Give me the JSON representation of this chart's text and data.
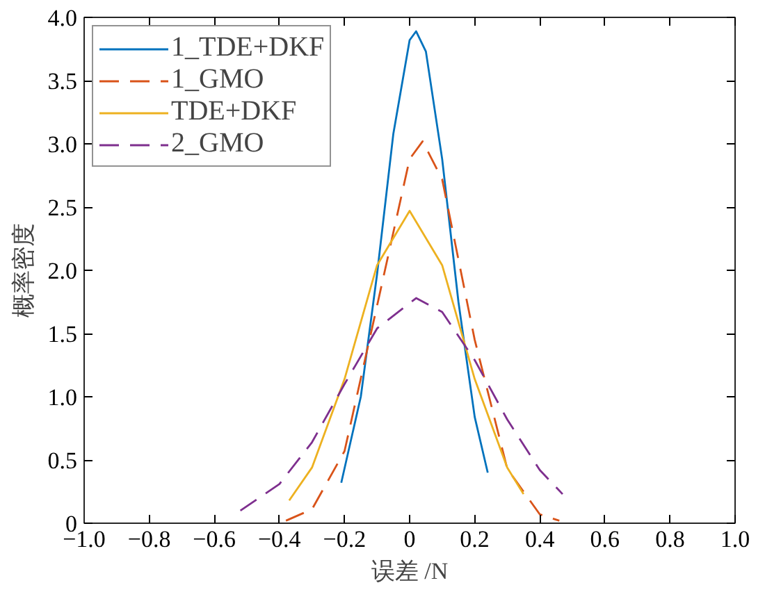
{
  "chart_data": {
    "type": "line",
    "xlabel": "误差 /N",
    "ylabel": "概率密度",
    "xlim": [
      -1.0,
      1.0
    ],
    "ylim": [
      0,
      4.0
    ],
    "xticks": [
      {
        "value": -1.0,
        "label": "−1.0"
      },
      {
        "value": -0.8,
        "label": "−0.8"
      },
      {
        "value": -0.6,
        "label": "−0.6"
      },
      {
        "value": -0.4,
        "label": "−0.4"
      },
      {
        "value": -0.2,
        "label": "−0.2"
      },
      0,
      {
        "value": 0.2,
        "label": "0.2"
      },
      {
        "value": 0.4,
        "label": "0.4"
      },
      {
        "value": 0.6,
        "label": "0.6"
      },
      {
        "value": 0.8,
        "label": "0.8"
      },
      {
        "value": 1.0,
        "label": "1.0"
      }
    ],
    "yticks": [
      0,
      {
        "value": 0.5,
        "label": "0.5"
      },
      {
        "value": 1.0,
        "label": "1.0"
      },
      {
        "value": 1.5,
        "label": "1.5"
      },
      {
        "value": 2.0,
        "label": "2.0"
      },
      {
        "value": 2.5,
        "label": "2.5"
      },
      {
        "value": 3.0,
        "label": "3.0"
      },
      {
        "value": 3.5,
        "label": "3.5"
      },
      {
        "value": 4.0,
        "label": "4.0"
      }
    ],
    "grid": false,
    "legend": "top left",
    "marker": "none",
    "series": [
      {
        "name": "1_TDE+DKF",
        "color": "#0072bd",
        "line_style": "solid",
        "x": [
          -0.21,
          -0.15,
          -0.1,
          -0.05,
          0.0,
          0.02,
          0.05,
          0.1,
          0.15,
          0.2,
          0.24
        ],
        "values": [
          0.32,
          1.0,
          1.97,
          3.08,
          3.82,
          3.89,
          3.73,
          2.88,
          1.75,
          0.84,
          0.4
        ]
      },
      {
        "name": "1_GMO",
        "color": "#d95319",
        "line_style": "dashed",
        "x": [
          -0.38,
          -0.3,
          -0.2,
          -0.1,
          0.0,
          0.04,
          0.1,
          0.2,
          0.3,
          0.4,
          0.46
        ],
        "values": [
          0.02,
          0.11,
          0.57,
          1.72,
          2.88,
          3.02,
          2.72,
          1.45,
          0.43,
          0.07,
          0.02
        ]
      },
      {
        "name": "TDE+DKF",
        "color": "#edb120",
        "line_style": "solid",
        "x": [
          -0.37,
          -0.3,
          -0.2,
          -0.1,
          0.0,
          0.1,
          0.2,
          0.3,
          0.35
        ],
        "values": [
          0.18,
          0.44,
          1.14,
          2.04,
          2.47,
          2.04,
          1.14,
          0.44,
          0.23
        ]
      },
      {
        "name": "2_GMO",
        "color": "#7e2f8e",
        "line_style": "dashed",
        "x": [
          -0.52,
          -0.4,
          -0.3,
          -0.2,
          -0.1,
          0.02,
          0.1,
          0.2,
          0.3,
          0.4,
          0.47
        ],
        "values": [
          0.1,
          0.31,
          0.64,
          1.1,
          1.54,
          1.78,
          1.67,
          1.29,
          0.82,
          0.42,
          0.23
        ]
      }
    ]
  }
}
